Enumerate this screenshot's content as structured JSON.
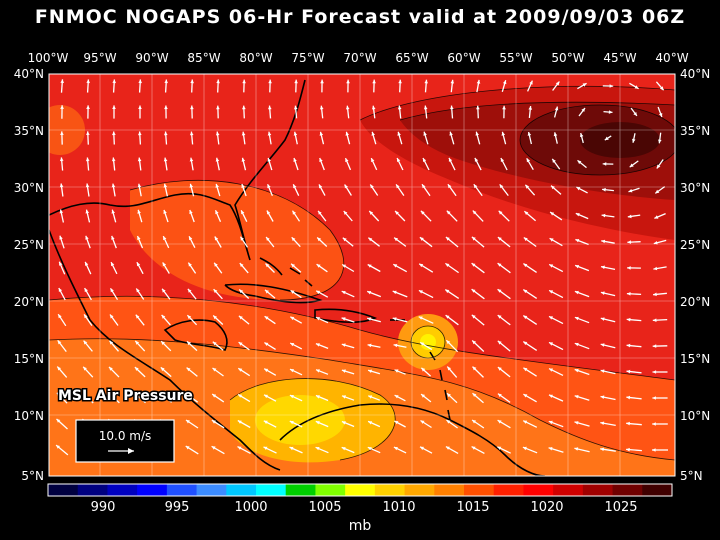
{
  "title": "FNMOC NOGAPS 06-Hr Forecast valid at 2009/09/03 06Z",
  "field_label": "MSL Air Pressure",
  "reference_vector": "10.0 m/s",
  "units": "mb",
  "lon_labels": [
    "100°W",
    "95°W",
    "90°W",
    "85°W",
    "80°W",
    "75°W",
    "70°W",
    "65°W",
    "60°W",
    "55°W",
    "50°W",
    "45°W",
    "40°W"
  ],
  "lat_labels": [
    "40°N",
    "35°N",
    "30°N",
    "25°N",
    "20°N",
    "15°N",
    "10°N",
    "5°N"
  ],
  "colorbar": {
    "labels": [
      "990",
      "995",
      "1000",
      "1005",
      "1010",
      "1015",
      "1020",
      "1025"
    ],
    "colors": [
      "#000040",
      "#000080",
      "#0000c0",
      "#0000ff",
      "#2050ff",
      "#3c8cff",
      "#00c8ff",
      "#00ffff",
      "#00d000",
      "#80ff00",
      "#ffff00",
      "#ffd200",
      "#ffa800",
      "#ff8000",
      "#ff5000",
      "#ff2000",
      "#ff0000",
      "#d00000",
      "#a00000",
      "#700000",
      "#400000"
    ]
  },
  "colors": {
    "ocean_red": "#e8241a",
    "warm_orange": "#ff6a12",
    "yellow": "#ffdc00",
    "high_dark": "#6e0a08"
  }
}
